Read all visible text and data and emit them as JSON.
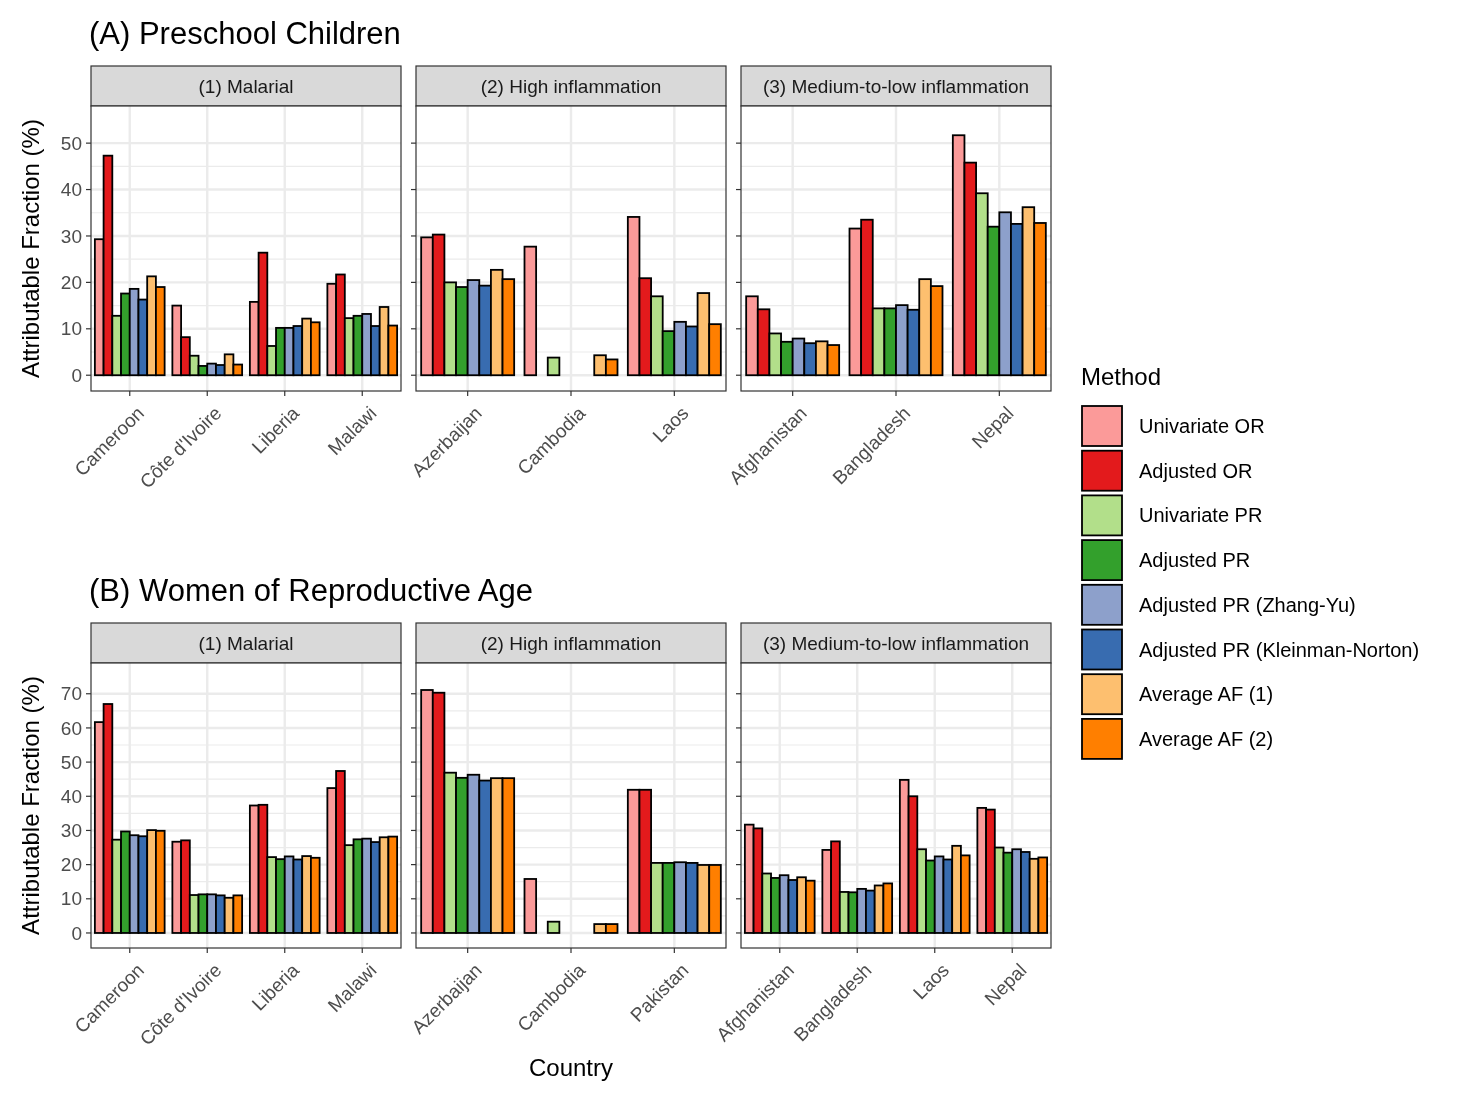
{
  "chart_data": [
    {
      "type": "bar",
      "title": "(1) Malarial",
      "annotations": [
        "(A) Preschool Children"
      ],
      "ylabel": "Attributable Fraction (%)",
      "legend_title": "Method",
      "legend": "right",
      "grid": true,
      "categories": [
        "Cameroon",
        "Côte d'Ivoire",
        "Liberia",
        "Malawi"
      ],
      "ylim": [
        -3.4,
        58
      ],
      "yticks": [
        0,
        10,
        20,
        30,
        40,
        50
      ],
      "series": [
        {
          "name": "Univariate OR",
          "color": "#fb9a99",
          "values": [
            29.3,
            15.0,
            15.8,
            19.7
          ]
        },
        {
          "name": "Adjusted OR",
          "color": "#e31a1c",
          "values": [
            47.3,
            8.2,
            26.4,
            21.7
          ]
        },
        {
          "name": "Univariate PR",
          "color": "#b2df8a",
          "values": [
            12.8,
            4.2,
            6.3,
            12.3
          ]
        },
        {
          "name": "Adjusted PR",
          "color": "#33a02c",
          "values": [
            17.6,
            2.0,
            10.2,
            12.8
          ]
        },
        {
          "name": "Adjusted PR (Zhang-Yu)",
          "color": "#8da0cb",
          "values": [
            18.6,
            2.5,
            10.2,
            13.2
          ]
        },
        {
          "name": "Adjusted PR (Kleinman-Norton)",
          "color": "#386cb0",
          "values": [
            16.3,
            2.2,
            10.6,
            10.6
          ]
        },
        {
          "name": "Average AF (1)",
          "color": "#fdbf6f",
          "values": [
            21.3,
            4.5,
            12.2,
            14.7
          ]
        },
        {
          "name": "Average AF (2)",
          "color": "#ff7f00",
          "values": [
            19.0,
            2.3,
            11.4,
            10.7
          ]
        }
      ]
    },
    {
      "type": "bar",
      "title": "(2) High inflammation",
      "grid": true,
      "tick_labels": "x",
      "categories": [
        "Azerbaijan",
        "Cambodia",
        "Laos"
      ],
      "ylim": [
        -3.4,
        58
      ],
      "yticks": [
        0,
        10,
        20,
        30,
        40,
        50
      ],
      "series": [
        {
          "color": "#fb9a99",
          "values": [
            29.7,
            27.7,
            34.1
          ]
        },
        {
          "color": "#e31a1c",
          "values": [
            30.3,
            null,
            20.9
          ]
        },
        {
          "color": "#b2df8a",
          "values": [
            20.0,
            3.8,
            17.0
          ]
        },
        {
          "color": "#33a02c",
          "values": [
            19.0,
            null,
            9.5
          ]
        },
        {
          "color": "#8da0cb",
          "values": [
            20.5,
            null,
            11.5
          ]
        },
        {
          "color": "#386cb0",
          "values": [
            19.3,
            null,
            10.5
          ]
        },
        {
          "color": "#fdbf6f",
          "values": [
            22.7,
            4.3,
            17.7
          ]
        },
        {
          "color": "#ff7f00",
          "values": [
            20.7,
            3.4,
            11.0
          ]
        }
      ]
    },
    {
      "type": "bar",
      "title": "(3) Medium-to-low inflammation",
      "grid": true,
      "tick_labels": "x",
      "categories": [
        "Afghanistan",
        "Bangladesh",
        "Nepal"
      ],
      "ylim": [
        -3.4,
        58
      ],
      "yticks": [
        0,
        10,
        20,
        30,
        40,
        50
      ],
      "series": [
        {
          "color": "#fb9a99",
          "values": [
            17.0,
            31.6,
            51.7
          ]
        },
        {
          "color": "#e31a1c",
          "values": [
            14.2,
            33.5,
            45.8
          ]
        },
        {
          "color": "#b2df8a",
          "values": [
            9.0,
            14.4,
            39.2
          ]
        },
        {
          "color": "#33a02c",
          "values": [
            7.2,
            14.4,
            32.0
          ]
        },
        {
          "color": "#8da0cb",
          "values": [
            7.9,
            15.1,
            35.1
          ]
        },
        {
          "color": "#386cb0",
          "values": [
            6.9,
            14.1,
            32.6
          ]
        },
        {
          "color": "#fdbf6f",
          "values": [
            7.3,
            20.7,
            36.2
          ]
        },
        {
          "color": "#ff7f00",
          "values": [
            6.5,
            19.2,
            32.8
          ]
        }
      ]
    },
    {
      "type": "bar",
      "title": "(1) Malarial",
      "annotations": [
        "(B) Women of Reproductive Age"
      ],
      "ylabel": "Attributable Fraction (%)",
      "grid": true,
      "categories": [
        "Cameroon",
        "Côte d'Ivoire",
        "Liberia",
        "Malawi"
      ],
      "ylim": [
        -4.4,
        79
      ],
      "yticks": [
        0,
        10,
        20,
        30,
        40,
        50,
        60,
        70
      ],
      "series": [
        {
          "color": "#fb9a99",
          "values": [
            61.7,
            26.7,
            37.3,
            42.4
          ]
        },
        {
          "color": "#e31a1c",
          "values": [
            67.0,
            27.1,
            37.5,
            47.4
          ]
        },
        {
          "color": "#b2df8a",
          "values": [
            27.3,
            11.1,
            22.2,
            25.7
          ]
        },
        {
          "color": "#33a02c",
          "values": [
            29.7,
            11.3,
            21.6,
            27.4
          ]
        },
        {
          "color": "#8da0cb",
          "values": [
            28.6,
            11.3,
            22.4,
            27.6
          ]
        },
        {
          "color": "#386cb0",
          "values": [
            28.3,
            11.0,
            21.5,
            26.6
          ]
        },
        {
          "color": "#fdbf6f",
          "values": [
            30.1,
            10.3,
            22.5,
            28.0
          ]
        },
        {
          "color": "#ff7f00",
          "values": [
            29.9,
            11.0,
            22.0,
            28.2
          ]
        }
      ]
    },
    {
      "type": "bar",
      "title": "(2) High inflammation",
      "xlabel": "Country",
      "grid": true,
      "tick_labels": "x",
      "categories": [
        "Azerbaijan",
        "Cambodia",
        "Pakistan"
      ],
      "ylim": [
        -4.4,
        79
      ],
      "yticks": [
        0,
        10,
        20,
        30,
        40,
        50,
        60,
        70
      ],
      "series": [
        {
          "color": "#fb9a99",
          "values": [
            71.1,
            15.8,
            41.9
          ]
        },
        {
          "color": "#e31a1c",
          "values": [
            70.3,
            null,
            41.9
          ]
        },
        {
          "color": "#b2df8a",
          "values": [
            46.9,
            3.3,
            20.5
          ]
        },
        {
          "color": "#33a02c",
          "values": [
            45.4,
            null,
            20.5
          ]
        },
        {
          "color": "#8da0cb",
          "values": [
            46.3,
            null,
            20.7
          ]
        },
        {
          "color": "#386cb0",
          "values": [
            44.6,
            null,
            20.5
          ]
        },
        {
          "color": "#fdbf6f",
          "values": [
            45.3,
            2.6,
            19.9
          ]
        },
        {
          "color": "#ff7f00",
          "values": [
            45.3,
            2.6,
            19.9
          ]
        }
      ]
    },
    {
      "type": "bar",
      "title": "(3) Medium-to-low inflammation",
      "grid": true,
      "tick_labels": "x",
      "categories": [
        "Afghanistan",
        "Bangladesh",
        "Laos",
        "Nepal"
      ],
      "ylim": [
        -4.4,
        79
      ],
      "yticks": [
        0,
        10,
        20,
        30,
        40,
        50,
        60,
        70
      ],
      "series": [
        {
          "color": "#fb9a99",
          "values": [
            31.7,
            24.3,
            44.8,
            36.6
          ]
        },
        {
          "color": "#e31a1c",
          "values": [
            30.6,
            26.8,
            40.0,
            36.1
          ]
        },
        {
          "color": "#b2df8a",
          "values": [
            17.4,
            12.0,
            24.5,
            25.0
          ]
        },
        {
          "color": "#33a02c",
          "values": [
            16.1,
            11.9,
            21.2,
            23.5
          ]
        },
        {
          "color": "#8da0cb",
          "values": [
            16.9,
            12.9,
            22.4,
            24.5
          ]
        },
        {
          "color": "#386cb0",
          "values": [
            15.5,
            12.4,
            21.5,
            23.7
          ]
        },
        {
          "color": "#fdbf6f",
          "values": [
            16.3,
            13.9,
            25.5,
            21.7
          ]
        },
        {
          "color": "#ff7f00",
          "values": [
            15.3,
            14.5,
            22.7,
            22.1
          ]
        }
      ]
    }
  ]
}
